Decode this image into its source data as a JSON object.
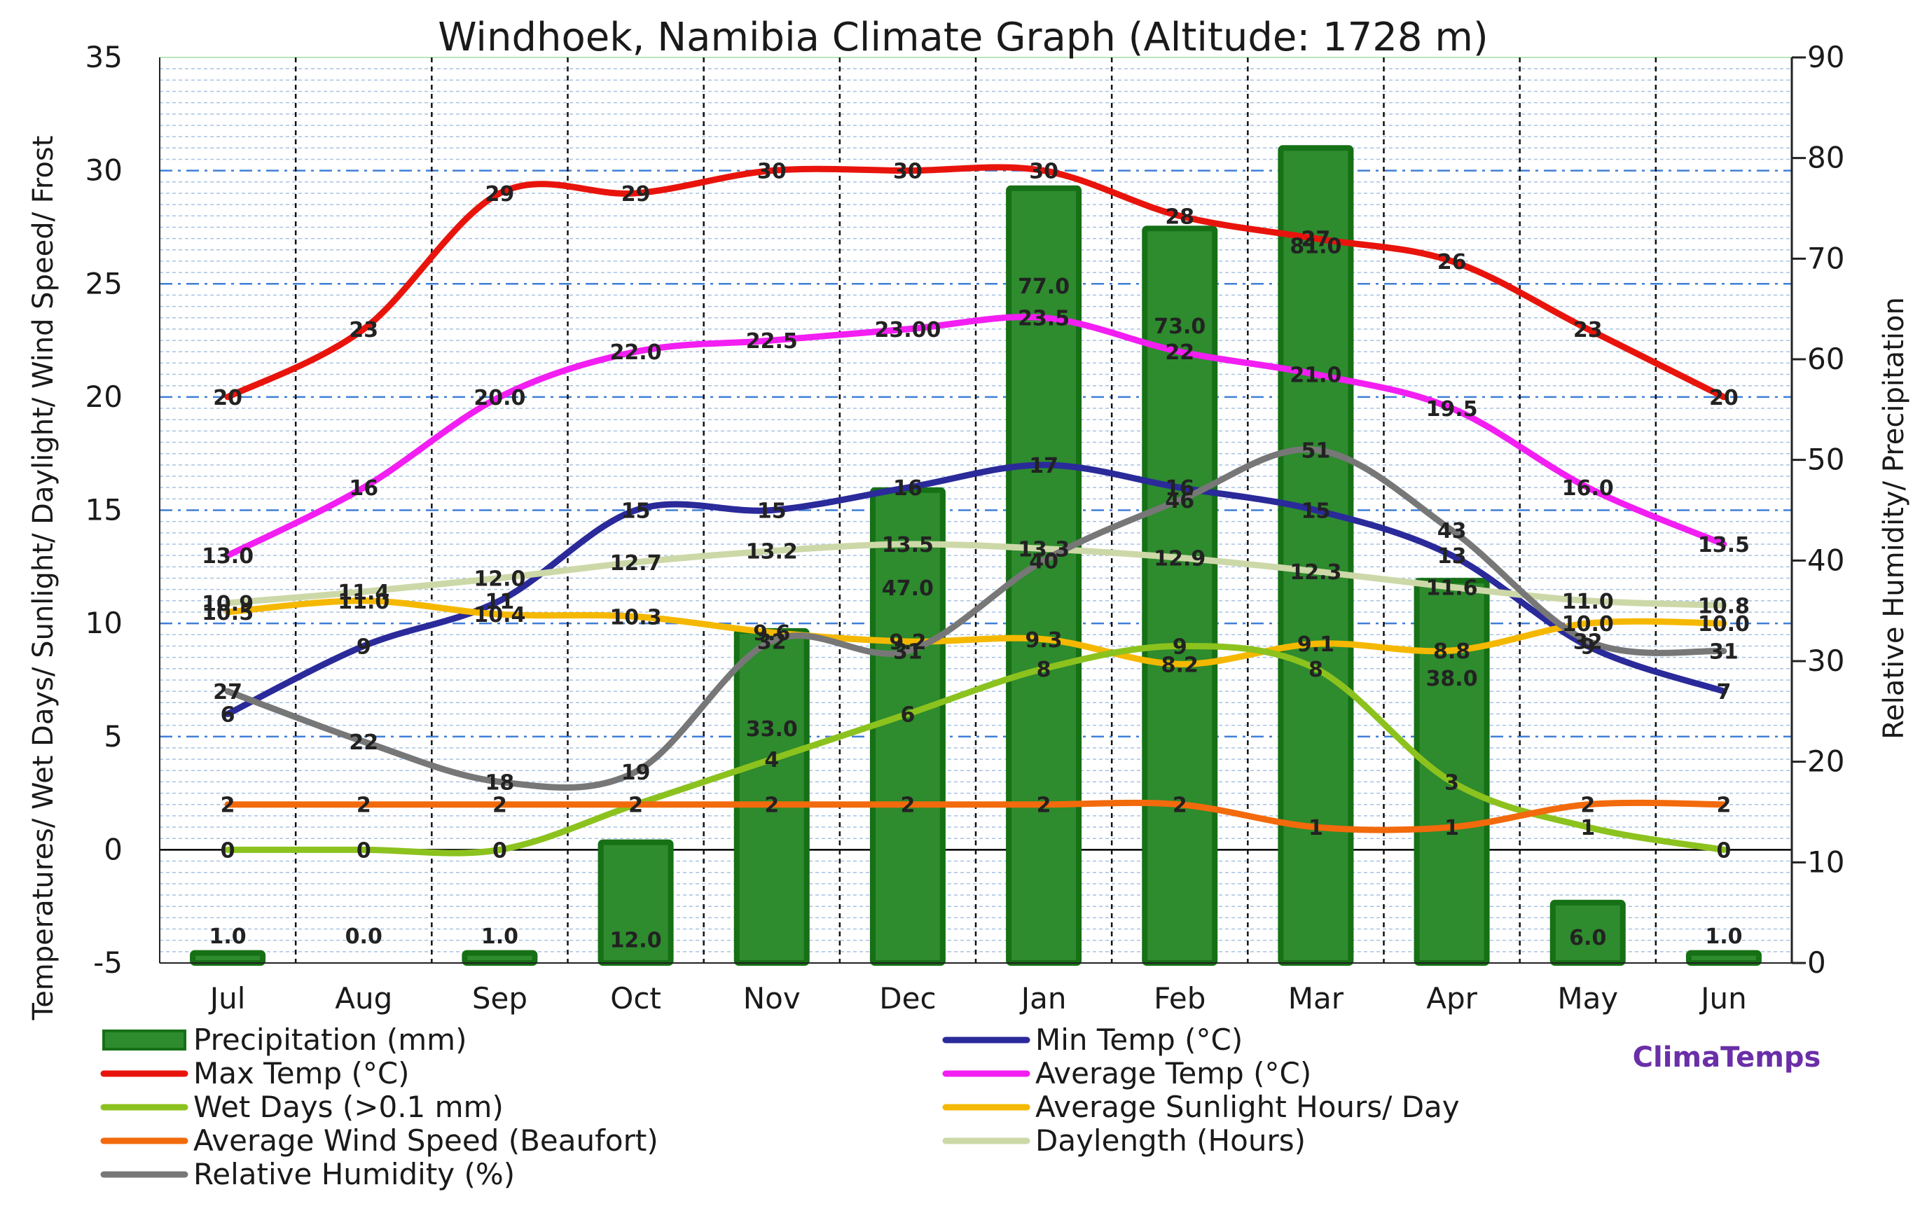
{
  "chart_data": {
    "type": "bar",
    "title": "Windhoek, Namibia Climate Graph (Altitude: 1728 m)",
    "ylabel_left": "Temperatures/ Wet Days/ Sunlight/ Daylight/ Wind Speed/ Frost",
    "ylabel_right": "Relative Humidity/ Precipitation",
    "categories": [
      "Jul",
      "Aug",
      "Sep",
      "Oct",
      "Nov",
      "Dec",
      "Jan",
      "Feb",
      "Mar",
      "Apr",
      "May",
      "Jun"
    ],
    "left_axis": {
      "min": -5,
      "max": 35,
      "ticks": [
        "-5",
        "0",
        "5",
        "10",
        "15",
        "20",
        "25",
        "30",
        "35"
      ]
    },
    "right_axis": {
      "min": 0,
      "max": 90,
      "ticks": [
        "0",
        "10",
        "20",
        "30",
        "40",
        "50",
        "60",
        "70",
        "80",
        "90"
      ]
    },
    "precipitation": {
      "name": "Precipitation (mm)",
      "color": "#2e8b2e",
      "values": [
        1,
        0,
        1,
        12,
        33,
        47,
        77,
        73,
        81,
        38,
        6,
        1
      ],
      "labels": [
        "1.0",
        "0.0",
        "1.0",
        "12.0",
        "33.0",
        "47.0",
        "77.0",
        "73.0",
        "81.0",
        "38.0",
        "6.0",
        "1.0"
      ]
    },
    "series": [
      {
        "name": "Max Temp (°C)",
        "color": "#e8140c",
        "axis": "left",
        "values": [
          20,
          23,
          29,
          29,
          30,
          30,
          30,
          28,
          27,
          26,
          23,
          20
        ],
        "labels": [
          "20",
          "23",
          "29",
          "29",
          "30",
          "30",
          "30",
          "28",
          "27",
          "26",
          "23",
          "20"
        ]
      },
      {
        "name": "Average Temp (°C)",
        "color": "#f21ef2",
        "axis": "left",
        "values": [
          13,
          16,
          20,
          22,
          22.5,
          23,
          23.5,
          22,
          21,
          19.5,
          16,
          13.5
        ],
        "labels": [
          "13.0",
          "16",
          "20.0",
          "22.0",
          "22.5",
          "23.00",
          "23.5",
          "22",
          "21.0",
          "19.5",
          "16.0",
          "13.5"
        ]
      },
      {
        "name": "Min Temp (°C)",
        "color": "#2a2a9a",
        "axis": "left",
        "values": [
          6,
          9,
          11,
          15,
          15,
          16,
          17,
          16,
          15,
          13,
          9,
          7
        ],
        "labels": [
          "6",
          "9",
          "11",
          "15",
          "15",
          "16",
          "17",
          "16",
          "15",
          "13",
          "9",
          "7"
        ]
      },
      {
        "name": "Daylength (Hours)",
        "color": "#cdd8a8",
        "axis": "left",
        "values": [
          10.9,
          11.4,
          12,
          12.7,
          13.2,
          13.5,
          13.3,
          12.9,
          12.3,
          11.6,
          11,
          10.8
        ],
        "labels": [
          "10.9",
          "11.4",
          "12.0",
          "12.7",
          "13.2",
          "13.5",
          "13.3",
          "12.9",
          "12.3",
          "11.6",
          "11.0",
          "10.8"
        ]
      },
      {
        "name": "Average Sunlight Hours/ Day",
        "color": "#f5b800",
        "axis": "left",
        "values": [
          10.5,
          11,
          10.4,
          10.3,
          9.6,
          9.2,
          9.3,
          8.2,
          9.1,
          8.8,
          10,
          10
        ],
        "labels": [
          "10.5",
          "11.0",
          "10.4",
          "10.3",
          "9.6",
          "9.2",
          "9.3",
          "8.2",
          "9.1",
          "8.8",
          "10.0",
          "10.0"
        ]
      },
      {
        "name": "Wet Days (>0.1 mm)",
        "color": "#8cc21e",
        "axis": "left",
        "values": [
          0,
          0,
          0,
          2,
          4,
          6,
          8,
          9,
          8,
          3,
          1,
          0
        ],
        "labels": [
          "0",
          "0",
          "0",
          "2",
          "4",
          "6",
          "8",
          "9",
          "8",
          "3",
          "1",
          "0"
        ]
      },
      {
        "name": "Average Wind Speed (Beaufort)",
        "color": "#f26a0c",
        "axis": "left",
        "values": [
          2,
          2,
          2,
          2,
          2,
          2,
          2,
          2,
          1,
          1,
          2,
          2
        ],
        "labels": [
          "2",
          "2",
          "2",
          "2",
          "2",
          "2",
          "2",
          "2",
          "1",
          "1",
          "2",
          "2"
        ]
      },
      {
        "name": "Relative Humidity (%)",
        "color": "#777777",
        "axis": "right",
        "values": [
          27,
          22,
          18,
          19,
          32,
          31,
          40,
          46,
          51,
          43,
          32,
          31
        ],
        "labels": [
          "27",
          "22",
          "18",
          "19",
          "32",
          "31",
          "40",
          "46",
          "51",
          "43",
          "32",
          "31"
        ]
      }
    ],
    "legend": [
      "Precipitation (mm)",
      "Min Temp (°C)",
      "Max Temp (°C)",
      "Average Temp (°C)",
      "Wet Days (>0.1 mm)",
      "Average Sunlight Hours/ Day",
      "Average Wind Speed (Beaufort)",
      "Daylength (Hours)",
      "Relative Humidity (%)"
    ],
    "brand": "ClimaTemps",
    "grid": true
  }
}
